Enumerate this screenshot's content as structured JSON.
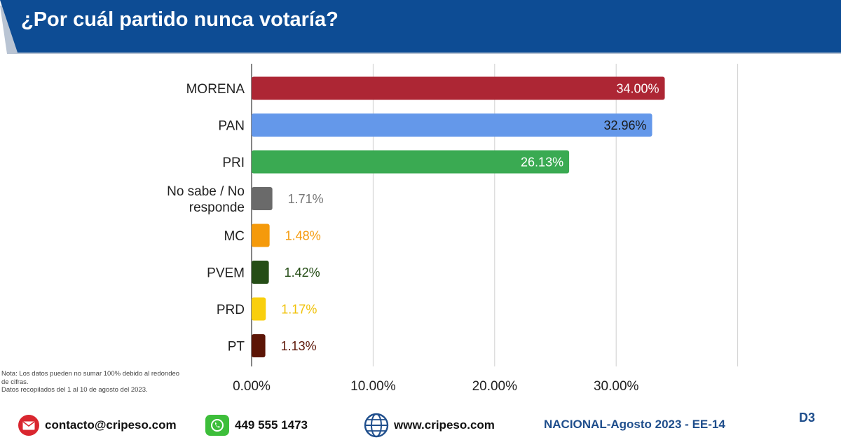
{
  "header": {
    "title": "¿Por cuál partido nunca votaría?"
  },
  "colors": {
    "banner": "#0d4c94",
    "banner_shadow": "#b9c4d3"
  },
  "chart_data": {
    "type": "bar",
    "orientation": "horizontal",
    "title": "¿Por cuál partido nunca votaría?",
    "categories": [
      "MORENA",
      "PAN",
      "PRI",
      "No sabe / No responde",
      "MC",
      "PVEM",
      "PRD",
      "PT"
    ],
    "category_lines": [
      [
        "MORENA"
      ],
      [
        "PAN"
      ],
      [
        "PRI"
      ],
      [
        "No sabe / No",
        "responde"
      ],
      [
        "MC"
      ],
      [
        "PVEM"
      ],
      [
        "PRD"
      ],
      [
        "PT"
      ]
    ],
    "values": [
      34.0,
      32.96,
      26.13,
      1.71,
      1.48,
      1.42,
      1.17,
      1.13
    ],
    "value_labels": [
      "34.00%",
      "32.96%",
      "26.13%",
      "1.71%",
      "1.48%",
      "1.42%",
      "1.17%",
      "1.13%"
    ],
    "bar_colors": [
      "#ad2634",
      "#6498ea",
      "#3aaa52",
      "#6a6a6a",
      "#f59a0b",
      "#254d16",
      "#f9cf0d",
      "#5c1506"
    ],
    "label_colors": [
      "#ffffff",
      "#1a1a1a",
      "#ffffff",
      "#777777",
      "#f59a0b",
      "#254d16",
      "#f0c20a",
      "#5c1506"
    ],
    "label_inside": [
      true,
      true,
      true,
      false,
      false,
      false,
      false,
      false
    ],
    "xlim": [
      0,
      40
    ],
    "xticks": [
      0,
      10,
      20,
      30
    ],
    "xtick_labels": [
      "0.00%",
      "10.00%",
      "20.00%",
      "30.00%"
    ],
    "gridlines": [
      10,
      20,
      30,
      40
    ],
    "xlabel": "",
    "ylabel": ""
  },
  "note": {
    "line1": "Nota: Los datos pueden no sumar 100% debido al redondeo de cifras.",
    "line2": "Datos recopilados del 1 al 10 de agosto del 2023."
  },
  "footer": {
    "email": "contacto@cripeso.com",
    "phone": "449 555 1473",
    "website": "www.cripeso.com",
    "edition": "NACIONAL-Agosto 2023 - EE-14",
    "page_code": "D3"
  }
}
